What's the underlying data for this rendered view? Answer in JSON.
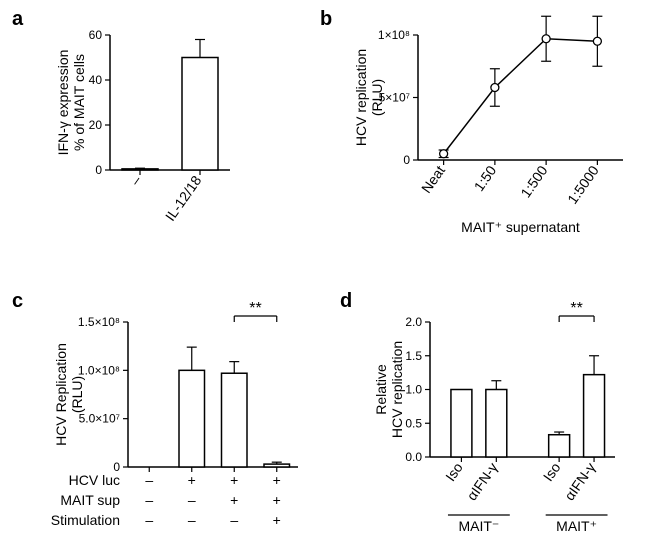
{
  "panel_a": {
    "label": "a",
    "type": "bar",
    "y_title": "IFN-γ expression\n% of MAIT cells",
    "y_title_fontsize": 14,
    "categories": [
      "–",
      "IL-12/18"
    ],
    "values": [
      0.5,
      50
    ],
    "errors": [
      0.3,
      8
    ],
    "ylim": [
      0,
      60
    ],
    "ytick_step": 20,
    "tick_fontsize": 12,
    "bar_fill": "#ffffff",
    "bar_stroke": "#000000",
    "bar_stroke_width": 1.5,
    "axis_color": "#000000",
    "bar_width": 0.6,
    "tick_len": 5
  },
  "panel_b": {
    "label": "b",
    "type": "line",
    "y_title": "HCV replication\n(RLU)",
    "y_title_fontsize": 14,
    "x_title": "MAIT⁺ supernatant",
    "x_title_fontsize": 14,
    "categories": [
      "Neat",
      "1:50",
      "1:500",
      "1:5000"
    ],
    "values": [
      5000000.0,
      58000000.0,
      97000000.0,
      95000000.0
    ],
    "errors": [
      3000000.0,
      15000000.0,
      18000000.0,
      20000000.0
    ],
    "ylim": [
      0,
      100000000.0
    ],
    "yticks": [
      0,
      50000000.0,
      100000000.0
    ],
    "ytick_labels": [
      "0",
      "5×10⁷",
      "1×10⁸"
    ],
    "tick_fontsize": 12,
    "line_color": "#000000",
    "marker": "circle",
    "marker_fill": "#ffffff",
    "marker_stroke": "#000000",
    "marker_size": 6,
    "line_width": 1.5,
    "axis_color": "#000000",
    "tick_len": 5
  },
  "panel_c": {
    "label": "c",
    "type": "bar",
    "y_title": "HCV Replication\n(RLU)",
    "y_title_fontsize": 14,
    "categories_idx": [
      0,
      1,
      2,
      3
    ],
    "values": [
      0,
      100000000.0,
      97000000.0,
      3000000.0
    ],
    "errors": [
      0,
      24000000.0,
      12000000.0,
      2000000.0
    ],
    "ylim": [
      0,
      150000000.0
    ],
    "yticks": [
      0,
      50000000.0,
      100000000.0,
      150000000.0
    ],
    "ytick_labels": [
      "0",
      "5.0×10⁷",
      "1.0×10⁸",
      "1.5×10⁸"
    ],
    "tick_fontsize": 12,
    "bar_fill": "#ffffff",
    "bar_stroke": "#000000",
    "bar_stroke_width": 1.5,
    "axis_color": "#000000",
    "bar_width": 0.6,
    "tick_len": 5,
    "sig_label": "**",
    "sig_between": [
      2,
      3
    ],
    "row_labels": [
      "HCV luc",
      "MAIT sup",
      "Stimulation"
    ],
    "rows": [
      [
        "–",
        "+",
        "+",
        "+"
      ],
      [
        "–",
        "–",
        "+",
        "+"
      ],
      [
        "–",
        "–",
        "–",
        "+"
      ]
    ],
    "row_fontsize": 14
  },
  "panel_d": {
    "label": "d",
    "type": "bar",
    "y_title": "Relative\nHCV replication",
    "y_title_fontsize": 14,
    "groups": [
      {
        "label": "MAIT⁻",
        "cats": [
          "Iso",
          "αIFN-γ"
        ],
        "values": [
          1.0,
          1.0
        ],
        "errors": [
          0,
          0.13
        ]
      },
      {
        "label": "MAIT⁺",
        "cats": [
          "Iso",
          "αIFN-γ"
        ],
        "values": [
          0.33,
          1.22
        ],
        "errors": [
          0.04,
          0.28
        ]
      }
    ],
    "ylim": [
      0,
      2.0
    ],
    "ytick_step": 0.5,
    "tick_fontsize": 12,
    "bar_fill": "#ffffff",
    "bar_stroke": "#000000",
    "bar_stroke_width": 1.5,
    "axis_color": "#000000",
    "bar_width": 0.6,
    "tick_len": 5,
    "group_gap": 0.8,
    "group_line_fontsize": 14,
    "sig_label": "**",
    "sig_between_global": [
      2,
      3
    ]
  },
  "fig": {
    "label_fontsize": 20,
    "sig_fontsize": 16,
    "cat_fontsize": 14
  }
}
